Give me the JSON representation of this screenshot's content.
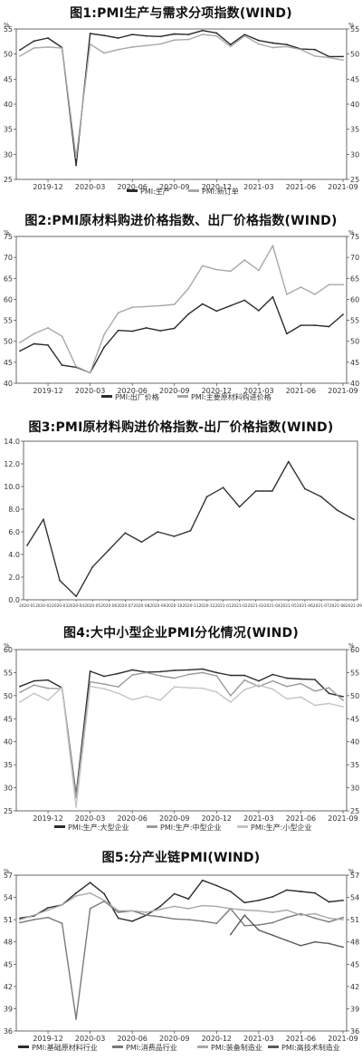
{
  "chart_data": [
    {
      "title": "图1:PMI生产与需求分项指数(WIND)",
      "type": "line",
      "unit_left": "%",
      "unit_right": "%",
      "ylim": [
        25,
        55
      ],
      "y_ticks": [
        25,
        30,
        35,
        40,
        45,
        50,
        55
      ],
      "x_tick_labels": [
        "2019-12",
        "2020-03",
        "2020-06",
        "2020-09",
        "2020-12",
        "2021-03",
        "2021-06",
        "2021-09"
      ],
      "x_tick_index": [
        2,
        5,
        8,
        11,
        14,
        17,
        20,
        23
      ],
      "n": 24,
      "legend": "bottom",
      "series": [
        {
          "name": "PMI:生产",
          "color": "#2b2b2b",
          "values": [
            50.8,
            52.6,
            53.2,
            51.3,
            27.8,
            54.1,
            53.7,
            53.2,
            53.9,
            53.6,
            53.5,
            54.0,
            53.9,
            54.7,
            54.2,
            51.9,
            53.9,
            52.7,
            52.2,
            51.9,
            51.0,
            50.9,
            49.5,
            49.5
          ]
        },
        {
          "name": "PMI:新订单",
          "color": "#a8a8a8",
          "values": [
            49.6,
            51.2,
            51.4,
            51.2,
            29.3,
            52.0,
            50.2,
            50.9,
            51.4,
            51.7,
            52.0,
            52.8,
            52.9,
            53.9,
            53.6,
            51.5,
            53.6,
            52.0,
            51.3,
            51.5,
            50.9,
            49.6,
            49.3,
            48.8
          ]
        }
      ]
    },
    {
      "title": "图2:PMI原材料购进价格指数、出厂价格指数(WIND)",
      "type": "line",
      "unit_left": "%",
      "unit_right": "%",
      "ylim": [
        40,
        75
      ],
      "y_ticks": [
        40,
        45,
        50,
        55,
        60,
        65,
        70,
        75
      ],
      "x_tick_labels": [
        "2019-12",
        "2020-03",
        "2020-06",
        "2020-09",
        "2020-12",
        "2021-03",
        "2021-06",
        "2021-09"
      ],
      "x_tick_index": [
        2,
        5,
        8,
        11,
        14,
        17,
        20,
        23
      ],
      "n": 24,
      "legend": "bottom",
      "series": [
        {
          "name": "PMI:出厂价格",
          "color": "#2b2b2b",
          "values": [
            47.7,
            49.4,
            49.1,
            44.3,
            43.8,
            42.5,
            48.6,
            52.6,
            52.4,
            53.2,
            52.5,
            53.1,
            56.5,
            58.9,
            57.2,
            58.5,
            59.8,
            57.3,
            60.6,
            51.8,
            53.8,
            53.8,
            53.5,
            56.4
          ]
        },
        {
          "name": "PMI:主要原材料购进价格",
          "color": "#a8a8a8",
          "values": [
            49.7,
            51.8,
            53.2,
            51.2,
            44.0,
            42.5,
            51.6,
            56.8,
            58.1,
            58.3,
            58.5,
            58.8,
            62.6,
            68.0,
            67.1,
            66.7,
            69.4,
            66.9,
            72.8,
            61.2,
            62.9,
            61.2,
            63.5,
            63.5
          ]
        }
      ]
    },
    {
      "title": "图3:PMI原材料购进价格指数-出厂价格指数(WIND)",
      "type": "line",
      "ylim": [
        0,
        14
      ],
      "y_tick_labels": [
        "0.0",
        "2.0",
        "4.0",
        "6.0",
        "8.0",
        "10.0",
        "12.0",
        "14.0"
      ],
      "y_ticks": [
        0,
        2,
        4,
        6,
        8,
        10,
        12,
        14
      ],
      "x": [
        "2020-01",
        "2020-02",
        "2020-03",
        "2020-04",
        "2020-05",
        "2020-06",
        "2020-07",
        "2020-08",
        "2020-09",
        "2020-10",
        "2020-11",
        "2020-12",
        "2021-01",
        "2021-02",
        "2021-03",
        "2021-04",
        "2021-05",
        "2021-06",
        "2021-07",
        "2021-08",
        "2021-09"
      ],
      "x_tick_labels": [
        "2020-01",
        "2020-02",
        "2020-03",
        "2020-04",
        "2020-05",
        "2020-06",
        "2020-07",
        "2020-08",
        "2020-09",
        "2020-10",
        "2020-11",
        "2020-12",
        "2021-01",
        "2021-02",
        "2021-03",
        "2021-04",
        "2021-05",
        "2021-06",
        "2021-07",
        "2021-08",
        "2021-09"
      ],
      "series": [
        {
          "name": "",
          "color": "#333333",
          "values": [
            4.8,
            7.1,
            1.7,
            0.3,
            2.9,
            4.4,
            5.9,
            5.1,
            6.0,
            5.6,
            6.1,
            9.1,
            9.9,
            8.2,
            9.6,
            9.6,
            12.2,
            9.8,
            9.1,
            7.9,
            7.1
          ]
        }
      ]
    },
    {
      "title": "图4:大中小型企业PMI分化情况(WIND)",
      "type": "line",
      "unit_left": "%",
      "unit_right": "%",
      "ylim": [
        25,
        60
      ],
      "y_ticks": [
        25,
        30,
        35,
        40,
        45,
        50,
        55,
        60
      ],
      "x_tick_labels": [
        "2019-12",
        "2020-03",
        "2020-06",
        "2020-09",
        "2020-12",
        "2021-03",
        "2021-06",
        "2021-09"
      ],
      "x_tick_index": [
        2,
        5,
        8,
        11,
        14,
        17,
        20,
        23
      ],
      "n": 24,
      "legend": "bottom",
      "series": [
        {
          "name": "PMI:生产:大型企业",
          "color": "#2b2b2b",
          "values": [
            52.0,
            53.2,
            53.4,
            51.7,
            28.5,
            55.3,
            54.2,
            54.8,
            55.6,
            55.1,
            55.2,
            55.5,
            55.6,
            55.8,
            55.0,
            54.4,
            54.4,
            53.2,
            54.6,
            53.8,
            53.6,
            53.5,
            50.5,
            49.8
          ]
        },
        {
          "name": "PMI:生产:中型企业",
          "color": "#9a9a9a",
          "values": [
            50.7,
            52.3,
            51.6,
            51.5,
            27.9,
            53.0,
            52.5,
            51.9,
            54.5,
            55.0,
            54.3,
            53.8,
            54.6,
            55.0,
            54.3,
            50.0,
            53.4,
            52.0,
            53.2,
            52.0,
            52.6,
            51.0,
            51.7,
            49.0
          ]
        },
        {
          "name": "PMI:生产:小型企业",
          "color": "#c4c4c4",
          "values": [
            48.6,
            50.5,
            49.0,
            51.8,
            25.8,
            52.0,
            51.5,
            50.5,
            49.1,
            49.9,
            49.0,
            51.9,
            51.7,
            51.6,
            50.8,
            48.6,
            51.3,
            52.3,
            51.4,
            49.3,
            49.7,
            47.9,
            48.3,
            47.6
          ]
        }
      ]
    },
    {
      "title": "图5:分产业链PMI(WIND)",
      "type": "line",
      "unit_left": "%",
      "unit_right": "%",
      "ylim": [
        36,
        57
      ],
      "y_ticks": [
        36,
        39,
        42,
        45,
        48,
        51,
        54,
        57
      ],
      "x_tick_labels": [
        "2019-12",
        "2020-03",
        "2020-06",
        "2020-09",
        "2020-12",
        "2021-03",
        "2021-06",
        "2021-09"
      ],
      "x_tick_index": [
        2,
        5,
        8,
        11,
        14,
        17,
        20,
        23
      ],
      "n": 24,
      "legend": "bottom",
      "series": [
        {
          "name": "PMI:基础原材料行业",
          "color": "#2b2b2b",
          "values": [
            51.2,
            51.5,
            52.6,
            53.0,
            54.6,
            56.0,
            54.5,
            51.2,
            50.8,
            51.6,
            52.8,
            54.5,
            53.8,
            56.3,
            55.6,
            54.8,
            53.3,
            53.6,
            54.1,
            55.0,
            54.8,
            54.6,
            53.4,
            53.6
          ]
        },
        {
          "name": "PMI:消费品行业",
          "color": "#7a7a7a",
          "values": [
            50.6,
            51.0,
            51.3,
            50.5,
            37.6,
            52.5,
            53.5,
            52.0,
            52.2,
            51.6,
            51.4,
            51.1,
            51.0,
            50.8,
            50.5,
            52.5,
            50.2,
            50.3,
            50.6,
            51.3,
            51.8,
            51.2,
            50.7,
            51.3
          ]
        },
        {
          "name": "PMI:装备制造业",
          "color": "#a8a8a8",
          "values": [
            51.0,
            51.6,
            52.3,
            53.0,
            54.2,
            54.6,
            53.6,
            52.2,
            52.2,
            52.0,
            52.4,
            52.8,
            52.5,
            52.9,
            52.8,
            52.5,
            52.3,
            52.2,
            52.0,
            52.3,
            51.6,
            51.8,
            51.2,
            51.0
          ]
        },
        {
          "name": "PMI:高技术制造业",
          "color": "#5a5a5a",
          "values": [
            null,
            null,
            null,
            null,
            null,
            null,
            null,
            null,
            null,
            null,
            null,
            null,
            null,
            null,
            null,
            49.0,
            51.6,
            49.6,
            48.9,
            48.2,
            47.5,
            48.0,
            47.8,
            47.3
          ]
        }
      ]
    }
  ]
}
